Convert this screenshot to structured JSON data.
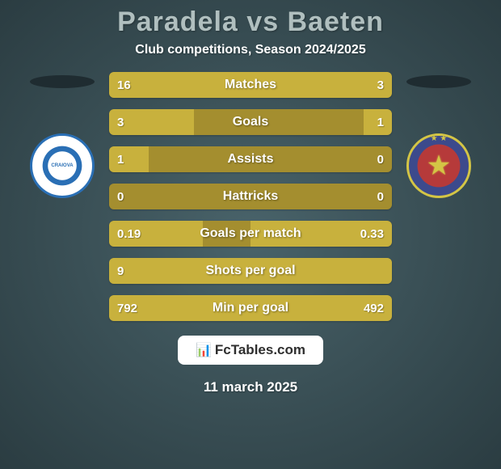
{
  "title": "Paradela vs Baeten",
  "subtitle": "Club competitions, Season 2024/2025",
  "date": "11 march 2025",
  "footer": {
    "label": "FcTables.com"
  },
  "colors": {
    "bg_top": "#293a3f",
    "bg_bottom": "#49636a",
    "title_color": "#b0bfbf",
    "subtitle_color": "#ffffff",
    "label_color": "#ffffff",
    "value_color": "#ffffff",
    "bar_track": "#a48e2f",
    "left_bar": "#c8b13d",
    "right_bar": "#c8b13d",
    "footer_bg": "#ffffff",
    "footer_text": "#2e2e2e",
    "shadow_ellipse": "#1f2c31",
    "logo_right_star": "#d4c545",
    "logo_right_small_star": "#d4c545"
  },
  "stats": [
    {
      "label": "Matches",
      "left_val": "16",
      "right_val": "3",
      "left_pct": 73,
      "right_pct": 27
    },
    {
      "label": "Goals",
      "left_val": "3",
      "right_val": "1",
      "left_pct": 30,
      "right_pct": 10
    },
    {
      "label": "Assists",
      "left_val": "1",
      "right_val": "0",
      "left_pct": 14,
      "right_pct": 0
    },
    {
      "label": "Hattricks",
      "left_val": "0",
      "right_val": "0",
      "left_pct": 0,
      "right_pct": 0
    },
    {
      "label": "Goals per match",
      "left_val": "0.19",
      "right_val": "0.33",
      "left_pct": 33,
      "right_pct": 50
    },
    {
      "label": "Shots per goal",
      "left_val": "9",
      "right_val": "",
      "left_pct": 100,
      "right_pct": 0
    },
    {
      "label": "Min per goal",
      "left_val": "792",
      "right_val": "492",
      "left_pct": 62,
      "right_pct": 38
    }
  ],
  "logos": {
    "left": {
      "name": "Universitatea Craiova",
      "text": "CRAIOVA"
    },
    "right": {
      "name": "FCSB"
    }
  }
}
